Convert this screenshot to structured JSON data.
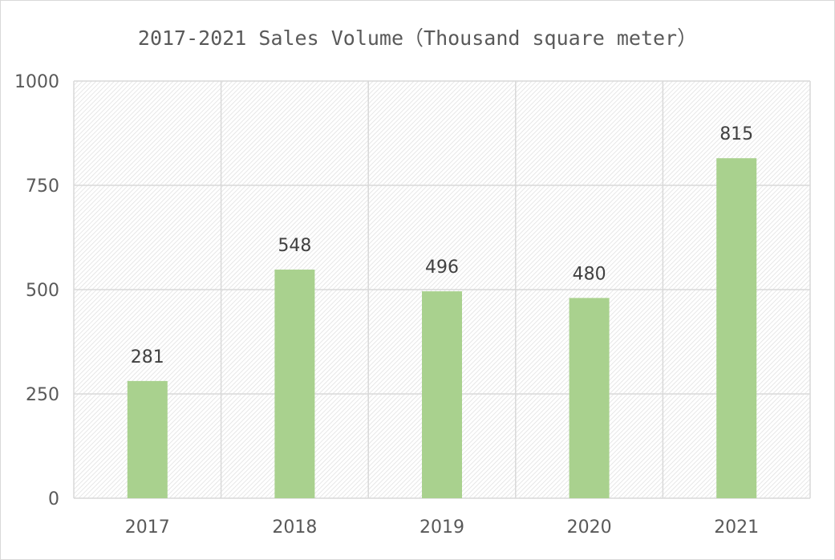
{
  "chart_data": {
    "type": "bar",
    "title": "2017-2021 Sales Volume（Thousand square meter）",
    "categories": [
      "2017",
      "2018",
      "2019",
      "2020",
      "2021"
    ],
    "values": [
      281,
      548,
      496,
      480,
      815
    ],
    "data_labels": [
      "281",
      "548",
      "496",
      "480",
      "815"
    ],
    "xlabel": "",
    "ylabel": "",
    "ylim": [
      0,
      1000
    ],
    "yticks": [
      "0",
      "250",
      "500",
      "750",
      "1000"
    ],
    "grid": true,
    "legend": "none",
    "bar_color": "#a9d18e",
    "grid_color": "#d9d9d9",
    "text_color": "#595959"
  }
}
